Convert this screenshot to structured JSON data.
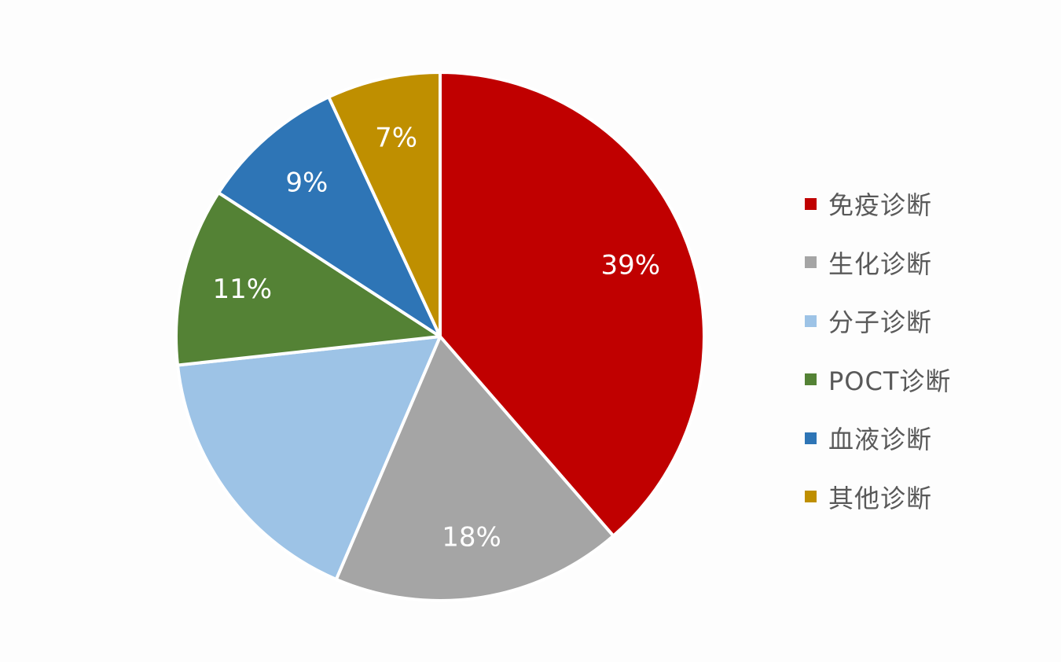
{
  "chart_data": {
    "type": "pie",
    "start_angle_deg": 0,
    "direction": "clockwise",
    "legend_position": "right",
    "slices": [
      {
        "name": "免疫诊断",
        "value": 39,
        "label": "39%",
        "color": "#C00000"
      },
      {
        "name": "生化诊断",
        "value": 18,
        "label": "18%",
        "color": "#A5A5A5"
      },
      {
        "name": "分子诊断",
        "value": 17,
        "label": "",
        "color": "#9DC3E6"
      },
      {
        "name": "POCT诊断",
        "value": 11,
        "label": "11%",
        "color": "#548235"
      },
      {
        "name": "血液诊断",
        "value": 9,
        "label": "9%",
        "color": "#2E75B6"
      },
      {
        "name": "其他诊断",
        "value": 7,
        "label": "7%",
        "color": "#BF8F00"
      }
    ]
  }
}
